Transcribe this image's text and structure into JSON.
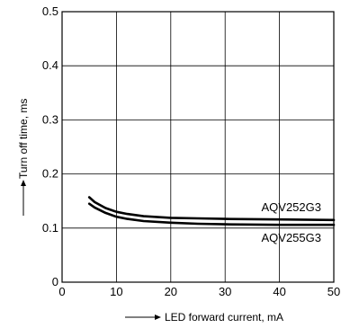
{
  "chart_data": {
    "type": "line",
    "xlabel": "LED forward current, mA",
    "ylabel": "Turn off time, ms",
    "xlim": [
      0,
      50
    ],
    "ylim": [
      0,
      0.5
    ],
    "x_ticks": [
      "0",
      "10",
      "20",
      "30",
      "40",
      "50"
    ],
    "y_ticks": [
      "0",
      "0.1",
      "0.2",
      "0.3",
      "0.4",
      "0.5"
    ],
    "grid": true,
    "series": [
      {
        "name": "AQV252G3",
        "x": [
          5,
          6,
          8,
          10,
          12,
          15,
          20,
          25,
          30,
          40,
          50
        ],
        "y": [
          0.157,
          0.148,
          0.137,
          0.13,
          0.126,
          0.122,
          0.119,
          0.118,
          0.117,
          0.116,
          0.115
        ],
        "color": "#000000"
      },
      {
        "name": "AQV255G3",
        "x": [
          5,
          6,
          8,
          10,
          12,
          15,
          20,
          25,
          30,
          40,
          50
        ],
        "y": [
          0.145,
          0.138,
          0.128,
          0.121,
          0.117,
          0.113,
          0.11,
          0.108,
          0.107,
          0.106,
          0.106
        ],
        "color": "#000000"
      }
    ]
  }
}
